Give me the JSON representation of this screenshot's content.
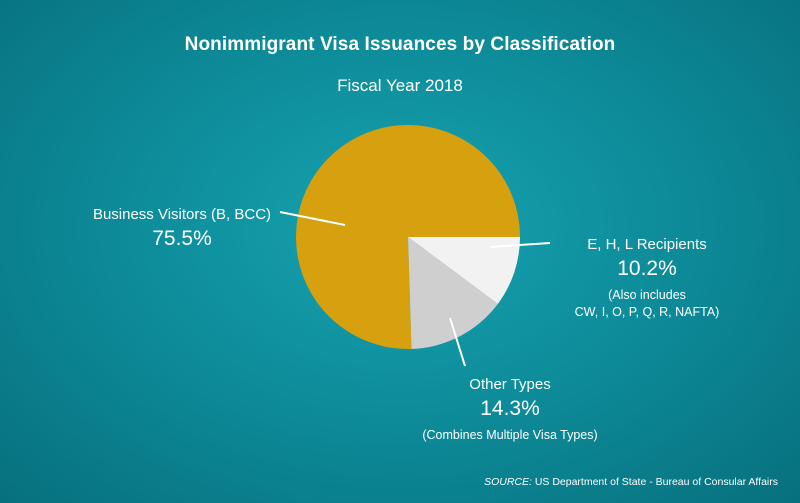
{
  "title": "Nonimmigrant Visa Issuances by Classification",
  "subtitle": "Fiscal Year 2018",
  "colors": {
    "background": "#0e8d9b",
    "business": "#d6a00e",
    "ehl": "#f2f2f2",
    "other": "#cfcfcf",
    "leader": "#ffffff"
  },
  "chart_data": {
    "type": "pie",
    "title": "Nonimmigrant Visa Issuances by Classification",
    "subtitle": "Fiscal Year 2018",
    "slices": [
      {
        "label": "Business Visitors (B, BCC)",
        "value": 75.5,
        "display": "75.5%",
        "color": "#d6a00e"
      },
      {
        "label": "E, H, L Recipients",
        "value": 10.2,
        "display": "10.2%",
        "note_lines": [
          "(Also includes",
          "CW, I, O, P, Q, R, NAFTA)"
        ],
        "color": "#f2f2f2"
      },
      {
        "label": "Other Types",
        "value": 14.3,
        "display": "14.3%",
        "note_lines": [
          "(Combines Multiple Visa Types)"
        ],
        "color": "#cfcfcf"
      }
    ]
  },
  "source": {
    "key": "SOURCE:",
    "text": " US Department of State - Bureau of Consular Affairs"
  }
}
